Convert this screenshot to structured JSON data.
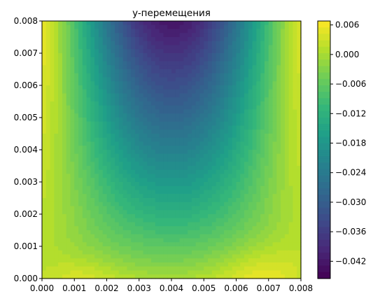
{
  "chart_data": {
    "type": "heatmap",
    "subtype": "filled-contour",
    "title": "y-перемещения",
    "xlabel": "",
    "ylabel": "",
    "xlim": [
      0.0,
      0.008
    ],
    "ylim": [
      0.0,
      0.008
    ],
    "x_ticks": [
      "0.000",
      "0.001",
      "0.002",
      "0.003",
      "0.004",
      "0.005",
      "0.006",
      "0.007",
      "0.008"
    ],
    "y_ticks": [
      "0.000",
      "0.001",
      "0.002",
      "0.003",
      "0.004",
      "0.005",
      "0.006",
      "0.007",
      "0.008"
    ],
    "colormap": "viridis",
    "colorbar": {
      "vmin": -0.0455,
      "vmax": 0.0068,
      "ticks": [
        {
          "value": 0.006,
          "label": "0.006"
        },
        {
          "value": 0.0,
          "label": "0.000"
        },
        {
          "value": -0.006,
          "label": "−0.006"
        },
        {
          "value": -0.012,
          "label": "−0.012"
        },
        {
          "value": -0.018,
          "label": "−0.018"
        },
        {
          "value": -0.024,
          "label": "−0.024"
        },
        {
          "value": -0.03,
          "label": "−0.030"
        },
        {
          "value": -0.036,
          "label": "−0.036"
        },
        {
          "value": -0.042,
          "label": "−0.042"
        }
      ]
    },
    "field_summary": {
      "min_value": -0.0455,
      "min_location": [
        0.0042,
        0.008
      ],
      "max_value": 0.0068,
      "max_location": [
        0.0068,
        0.0
      ],
      "secondary_high_location": [
        0.0012,
        0.0
      ]
    },
    "grid": false
  }
}
